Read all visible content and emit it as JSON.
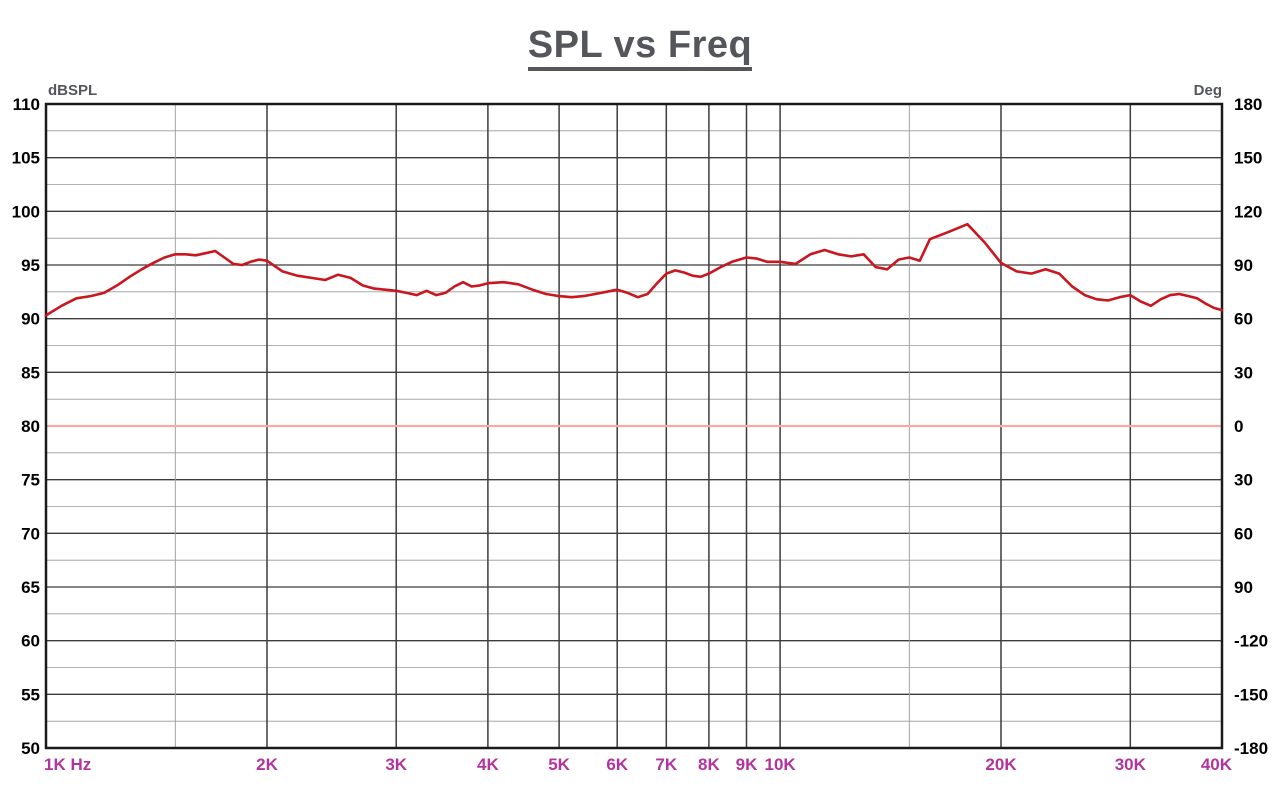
{
  "chart_data": {
    "type": "line",
    "title": "SPL vs Freq",
    "x_scale": "log",
    "left_axis": {
      "unit": "dBSPL",
      "min": 50,
      "max": 110,
      "major_step": 5,
      "minor_step": 2.5,
      "tick_values": [
        110,
        105,
        100,
        95,
        90,
        85,
        80,
        75,
        70,
        65,
        60,
        55,
        50
      ],
      "tick_labels": [
        "110",
        "105",
        "100",
        "95",
        "90",
        "85",
        "80",
        "75",
        "70",
        "65",
        "60",
        "55",
        "50"
      ]
    },
    "right_axis": {
      "unit": "Deg",
      "tick_labels": [
        "180",
        "150",
        "120",
        "90",
        "60",
        "30",
        "0",
        "30",
        "60",
        "90",
        "-120",
        "-150",
        "-180"
      ]
    },
    "x_axis": {
      "min_khz": 1,
      "max_khz": 40,
      "major_ticks": [
        {
          "khz": 1,
          "label": "1K Hz"
        },
        {
          "khz": 2,
          "label": "2K"
        },
        {
          "khz": 3,
          "label": "3K"
        },
        {
          "khz": 4,
          "label": "4K"
        },
        {
          "khz": 5,
          "label": "5K"
        },
        {
          "khz": 6,
          "label": "6K"
        },
        {
          "khz": 7,
          "label": "7K"
        },
        {
          "khz": 8,
          "label": "8K"
        },
        {
          "khz": 9,
          "label": "9K"
        },
        {
          "khz": 10,
          "label": "10K"
        },
        {
          "khz": 20,
          "label": "20K"
        },
        {
          "khz": 30,
          "label": "30K"
        },
        {
          "khz": 40,
          "label": "40K"
        }
      ],
      "minor_ticks_khz": [
        1.5,
        15
      ]
    },
    "reference_line": {
      "db": 80,
      "deg": 0,
      "color": "#f5a9a9"
    },
    "series": [
      {
        "name": "SPL",
        "color": "#c9161f",
        "x_khz": [
          1.0,
          1.05,
          1.1,
          1.15,
          1.2,
          1.25,
          1.3,
          1.35,
          1.4,
          1.45,
          1.5,
          1.55,
          1.6,
          1.65,
          1.7,
          1.75,
          1.8,
          1.85,
          1.9,
          1.95,
          2.0,
          2.1,
          2.2,
          2.3,
          2.4,
          2.5,
          2.6,
          2.7,
          2.8,
          2.9,
          3.0,
          3.1,
          3.2,
          3.3,
          3.4,
          3.5,
          3.6,
          3.7,
          3.8,
          3.9,
          4.0,
          4.2,
          4.4,
          4.6,
          4.8,
          5.0,
          5.2,
          5.4,
          5.6,
          5.8,
          6.0,
          6.2,
          6.4,
          6.6,
          6.8,
          7.0,
          7.2,
          7.4,
          7.6,
          7.8,
          8.0,
          8.3,
          8.6,
          9.0,
          9.3,
          9.6,
          10.0,
          10.5,
          11.0,
          11.5,
          12.0,
          12.5,
          13.0,
          13.5,
          14.0,
          14.5,
          15.0,
          15.5,
          16.0,
          17.0,
          18.0,
          19.0,
          20.0,
          21.0,
          22.0,
          23.0,
          24.0,
          25.0,
          26.0,
          27.0,
          28.0,
          29.0,
          30.0,
          31.0,
          32.0,
          33.0,
          34.0,
          35.0,
          36.0,
          37.0,
          38.0,
          39.0,
          40.0
        ],
        "spl_db": [
          90.3,
          91.2,
          91.9,
          92.1,
          92.4,
          93.1,
          93.9,
          94.6,
          95.2,
          95.7,
          96.0,
          96.0,
          95.9,
          96.1,
          96.3,
          95.7,
          95.1,
          95.0,
          95.3,
          95.5,
          95.4,
          94.4,
          94.0,
          93.8,
          93.6,
          94.1,
          93.8,
          93.1,
          92.8,
          92.7,
          92.6,
          92.4,
          92.2,
          92.6,
          92.2,
          92.4,
          93.0,
          93.4,
          93.0,
          93.1,
          93.3,
          93.4,
          93.2,
          92.7,
          92.3,
          92.1,
          92.0,
          92.1,
          92.3,
          92.5,
          92.7,
          92.4,
          92.0,
          92.3,
          93.3,
          94.2,
          94.5,
          94.3,
          94.0,
          93.9,
          94.2,
          94.8,
          95.3,
          95.7,
          95.6,
          95.3,
          95.3,
          95.1,
          96.0,
          96.4,
          96.0,
          95.8,
          96.0,
          94.8,
          94.6,
          95.5,
          95.7,
          95.4,
          97.4,
          98.1,
          98.8,
          97.1,
          95.2,
          94.4,
          94.2,
          94.6,
          94.2,
          93.0,
          92.2,
          91.8,
          91.7,
          92.0,
          92.2,
          91.6,
          91.2,
          91.8,
          92.2,
          92.3,
          92.1,
          91.9,
          91.4,
          91.0,
          90.8
        ]
      }
    ]
  },
  "colors": {
    "background": "#ffffff",
    "title": "#54565b",
    "axis_frame": "#1a1a1a",
    "grid_major": "#3c3c3c",
    "grid_minor": "#999999",
    "tick_label": "#000000",
    "freq_label": "#b2349f",
    "unit_label": "#54565b"
  }
}
